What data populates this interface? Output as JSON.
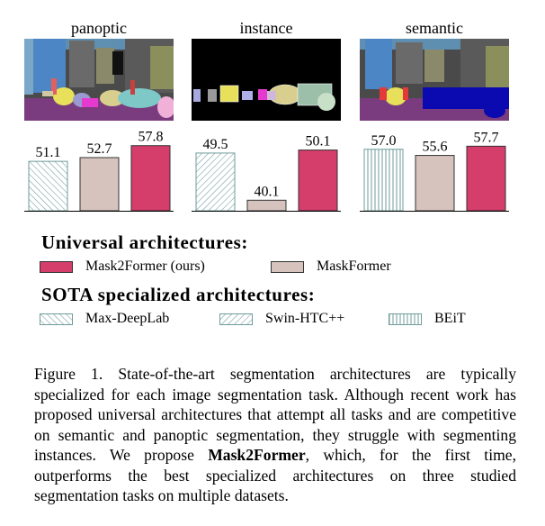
{
  "panels": [
    {
      "title": "panoptic"
    },
    {
      "title": "instance"
    },
    {
      "title": "semantic"
    }
  ],
  "chart_data": [
    {
      "type": "bar",
      "title": "panoptic",
      "categories": [
        "Max-DeepLab",
        "MaskFormer",
        "Mask2Former (ours)"
      ],
      "values": [
        51.1,
        52.7,
        57.8
      ],
      "labels": [
        "51.1",
        "52.7",
        "57.8"
      ],
      "fills": [
        "hatch-back",
        "#d6c3bd",
        "#d53d6b"
      ],
      "ylim": [
        30,
        60
      ]
    },
    {
      "type": "bar",
      "title": "instance",
      "categories": [
        "Swin-HTC++",
        "MaskFormer",
        "Mask2Former (ours)"
      ],
      "values": [
        49.5,
        40.1,
        50.1
      ],
      "labels": [
        "49.5",
        "40.1",
        "50.1"
      ],
      "fills": [
        "hatch-fwd",
        "#d6c3bd",
        "#d53d6b"
      ],
      "ylim": [
        38,
        52
      ]
    },
    {
      "type": "bar",
      "title": "semantic",
      "categories": [
        "BEiT",
        "MaskFormer",
        "Mask2Former (ours)"
      ],
      "values": [
        57.0,
        55.6,
        57.7
      ],
      "labels": [
        "57.0",
        "55.6",
        "57.7"
      ],
      "fills": [
        "hatch-vert",
        "#d6c3bd",
        "#d53d6b"
      ],
      "ylim": [
        43,
        59
      ]
    }
  ],
  "legend": {
    "universal_title": "Universal architectures:",
    "universal_items": [
      {
        "label": "Mask2Former (ours)",
        "fill": "#d53d6b"
      },
      {
        "label": "MaskFormer",
        "fill": "#d6c3bd"
      }
    ],
    "sota_title": "SOTA specialized architectures:",
    "sota_items": [
      {
        "label": "Max-DeepLab",
        "pattern": "hatch-back"
      },
      {
        "label": "Swin-HTC++",
        "pattern": "hatch-fwd"
      },
      {
        "label": "BEiT",
        "pattern": "hatch-vert"
      }
    ]
  },
  "caption": {
    "part1": "Figure 1. State-of-the-art segmentation architectures are typically specialized for each image segmentation task. Although recent work has proposed universal architectures that attempt all tasks and are competitive on semantic and panoptic segmentation, they struggle with segmenting instances. We propose ",
    "bold": "Mask2Former",
    "part2": ", which, for the first time, outperforms the best specialized architectures on three studied segmentation tasks on multiple datasets."
  },
  "colors": {
    "mask2former": "#d53d6b",
    "maskformer": "#d6c3bd",
    "hatch": "#6f9a9a"
  }
}
